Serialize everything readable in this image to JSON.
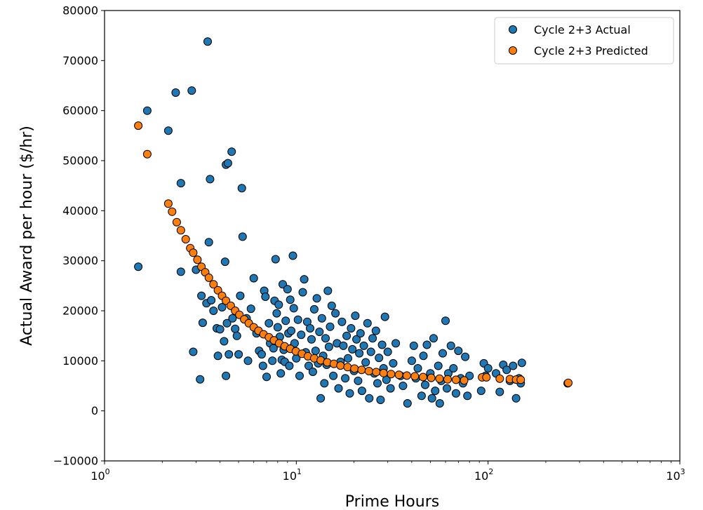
{
  "chart_data": {
    "type": "scatter",
    "xlabel": "Prime Hours",
    "ylabel": "Actual Award per hour ($/hr)",
    "xscale": "log",
    "xlim": [
      1,
      1000
    ],
    "ylim": [
      -10000,
      80000
    ],
    "yticks": [
      -10000,
      0,
      10000,
      20000,
      30000,
      40000,
      50000,
      60000,
      70000,
      80000
    ],
    "ytick_labels": [
      "−10000",
      "0",
      "10000",
      "20000",
      "30000",
      "40000",
      "50000",
      "60000",
      "70000",
      "80000"
    ],
    "xticks": [
      {
        "value": 1,
        "base": "10",
        "exp": "0"
      },
      {
        "value": 10,
        "base": "10",
        "exp": "1"
      },
      {
        "value": 100,
        "base": "10",
        "exp": "2"
      },
      {
        "value": 1000,
        "base": "10",
        "exp": "3"
      }
    ],
    "grid": false,
    "legend_position": "top-right",
    "series": [
      {
        "name": "Cycle 2+3 Actual",
        "color": "#1f77b4",
        "points": [
          [
            1.5,
            28800
          ],
          [
            1.67,
            60000
          ],
          [
            2.15,
            56000
          ],
          [
            2.35,
            63600
          ],
          [
            2.5,
            45500
          ],
          [
            2.5,
            27800
          ],
          [
            2.85,
            64000
          ],
          [
            2.9,
            11800
          ],
          [
            3.0,
            28200
          ],
          [
            3.15,
            6300
          ],
          [
            3.2,
            23000
          ],
          [
            3.25,
            17600
          ],
          [
            3.4,
            21500
          ],
          [
            3.45,
            73800
          ],
          [
            3.5,
            33700
          ],
          [
            3.55,
            46300
          ],
          [
            3.6,
            22100
          ],
          [
            3.7,
            20000
          ],
          [
            3.85,
            16500
          ],
          [
            3.9,
            11000
          ],
          [
            4.0,
            16300
          ],
          [
            4.1,
            20700
          ],
          [
            4.2,
            13900
          ],
          [
            4.25,
            29800
          ],
          [
            4.3,
            7000
          ],
          [
            4.3,
            49200
          ],
          [
            4.35,
            17500
          ],
          [
            4.4,
            49500
          ],
          [
            4.45,
            11300
          ],
          [
            4.6,
            51800
          ],
          [
            4.65,
            18500
          ],
          [
            4.8,
            16400
          ],
          [
            4.9,
            15000
          ],
          [
            5.0,
            11300
          ],
          [
            5.1,
            23000
          ],
          [
            5.2,
            44500
          ],
          [
            5.25,
            34800
          ],
          [
            5.5,
            18500
          ],
          [
            5.6,
            10000
          ],
          [
            5.8,
            20400
          ],
          [
            6.0,
            26500
          ],
          [
            6.2,
            15500
          ],
          [
            6.4,
            12000
          ],
          [
            6.6,
            11300
          ],
          [
            6.7,
            9000
          ],
          [
            6.8,
            24000
          ],
          [
            6.9,
            22800
          ],
          [
            7.0,
            6800
          ],
          [
            7.2,
            17500
          ],
          [
            7.3,
            13500
          ],
          [
            7.5,
            10000
          ],
          [
            7.6,
            12500
          ],
          [
            7.7,
            22000
          ],
          [
            7.8,
            30300
          ],
          [
            7.9,
            19500
          ],
          [
            8.0,
            16700
          ],
          [
            8.1,
            21200
          ],
          [
            8.2,
            14800
          ],
          [
            8.3,
            7500
          ],
          [
            8.4,
            10200
          ],
          [
            8.5,
            25300
          ],
          [
            8.6,
            12200
          ],
          [
            8.7,
            9800
          ],
          [
            8.8,
            18000
          ],
          [
            9.0,
            24300
          ],
          [
            9.1,
            15500
          ],
          [
            9.2,
            9000
          ],
          [
            9.3,
            22200
          ],
          [
            9.4,
            16000
          ],
          [
            9.5,
            12600
          ],
          [
            9.6,
            31000
          ],
          [
            9.7,
            20500
          ],
          [
            9.8,
            13500
          ],
          [
            10.0,
            10500
          ],
          [
            10.2,
            18200
          ],
          [
            10.4,
            7000
          ],
          [
            10.6,
            15200
          ],
          [
            10.8,
            23700
          ],
          [
            11.0,
            26300
          ],
          [
            11.2,
            11700
          ],
          [
            11.4,
            17800
          ],
          [
            11.6,
            9000
          ],
          [
            11.8,
            16500
          ],
          [
            12.0,
            14300
          ],
          [
            12.2,
            7800
          ],
          [
            12.4,
            20300
          ],
          [
            12.6,
            12000
          ],
          [
            12.8,
            22500
          ],
          [
            13.0,
            9500
          ],
          [
            13.2,
            15800
          ],
          [
            13.4,
            2500
          ],
          [
            13.6,
            18500
          ],
          [
            13.8,
            11000
          ],
          [
            14.0,
            5500
          ],
          [
            14.2,
            14500
          ],
          [
            14.4,
            9200
          ],
          [
            14.6,
            24000
          ],
          [
            14.8,
            12800
          ],
          [
            15.0,
            16800
          ],
          [
            15.3,
            21000
          ],
          [
            15.6,
            7000
          ],
          [
            16.0,
            19500
          ],
          [
            16.3,
            13500
          ],
          [
            16.6,
            4500
          ],
          [
            17.0,
            9800
          ],
          [
            17.3,
            17800
          ],
          [
            17.6,
            13000
          ],
          [
            18.0,
            6500
          ],
          [
            18.3,
            15000
          ],
          [
            18.6,
            10500
          ],
          [
            19.0,
            3500
          ],
          [
            19.3,
            16500
          ],
          [
            19.6,
            12300
          ],
          [
            20.0,
            8000
          ],
          [
            20.3,
            19000
          ],
          [
            20.6,
            14300
          ],
          [
            21.0,
            6000
          ],
          [
            21.3,
            11500
          ],
          [
            21.6,
            15500
          ],
          [
            22.0,
            4000
          ],
          [
            22.5,
            13000
          ],
          [
            23.0,
            9700
          ],
          [
            23.5,
            17500
          ],
          [
            24.0,
            2500
          ],
          [
            24.5,
            11800
          ],
          [
            25.0,
            14500
          ],
          [
            25.5,
            7500
          ],
          [
            26.0,
            16000
          ],
          [
            26.5,
            5500
          ],
          [
            27.0,
            10600
          ],
          [
            27.5,
            2200
          ],
          [
            28.0,
            13200
          ],
          [
            28.5,
            8500
          ],
          [
            29.0,
            18800
          ],
          [
            29.5,
            6200
          ],
          [
            30.0,
            11800
          ],
          [
            31.0,
            4500
          ],
          [
            32.0,
            9500
          ],
          [
            33.0,
            13500
          ],
          [
            35.0,
            7000
          ],
          [
            36.0,
            5000
          ],
          [
            38.0,
            1500
          ],
          [
            40.0,
            10000
          ],
          [
            41.0,
            13000
          ],
          [
            42.0,
            6500
          ],
          [
            43.0,
            8500
          ],
          [
            45.0,
            3000
          ],
          [
            46.0,
            11000
          ],
          [
            47.0,
            5200
          ],
          [
            48.0,
            13200
          ],
          [
            50.0,
            7500
          ],
          [
            51.0,
            2500
          ],
          [
            52.0,
            14500
          ],
          [
            53.0,
            4000
          ],
          [
            55.0,
            9000
          ],
          [
            56.0,
            1500
          ],
          [
            57.0,
            6000
          ],
          [
            58.0,
            11500
          ],
          [
            60.0,
            18000
          ],
          [
            61.0,
            4500
          ],
          [
            62.0,
            7500
          ],
          [
            64.0,
            13000
          ],
          [
            66.0,
            8500
          ],
          [
            68.0,
            3500
          ],
          [
            70.0,
            12000
          ],
          [
            72.0,
            6500
          ],
          [
            74.0,
            5500
          ],
          [
            76.0,
            10800
          ],
          [
            78.0,
            3000
          ],
          [
            80.0,
            7000
          ],
          [
            92.0,
            4000
          ],
          [
            95.0,
            9500
          ],
          [
            97.0,
            7000
          ],
          [
            100.0,
            8500
          ],
          [
            110.0,
            7500
          ],
          [
            115.0,
            3800
          ],
          [
            120.0,
            9200
          ],
          [
            125.0,
            8200
          ],
          [
            130.0,
            6000
          ],
          [
            135.0,
            9000
          ],
          [
            140.0,
            2500
          ],
          [
            145.0,
            6500
          ],
          [
            148.0,
            5500
          ],
          [
            150.0,
            9600
          ],
          [
            260.0,
            5500
          ]
        ]
      },
      {
        "name": "Cycle 2+3 Predicted",
        "color": "#ff7f0e",
        "points": [
          [
            1.5,
            57000
          ],
          [
            1.67,
            51300
          ],
          [
            2.15,
            41400
          ],
          [
            2.25,
            39800
          ],
          [
            2.38,
            37700
          ],
          [
            2.5,
            36100
          ],
          [
            2.65,
            34300
          ],
          [
            2.8,
            32500
          ],
          [
            2.9,
            31600
          ],
          [
            3.05,
            30200
          ],
          [
            3.2,
            28800
          ],
          [
            3.35,
            27700
          ],
          [
            3.5,
            26600
          ],
          [
            3.7,
            25300
          ],
          [
            3.9,
            24100
          ],
          [
            4.1,
            23000
          ],
          [
            4.3,
            22000
          ],
          [
            4.55,
            21000
          ],
          [
            4.8,
            20000
          ],
          [
            5.05,
            19200
          ],
          [
            5.35,
            18300
          ],
          [
            5.65,
            17500
          ],
          [
            6.0,
            16700
          ],
          [
            6.35,
            16000
          ],
          [
            6.75,
            15300
          ],
          [
            7.2,
            14700
          ],
          [
            7.65,
            14100
          ],
          [
            8.15,
            13500
          ],
          [
            8.7,
            12900
          ],
          [
            9.3,
            12400
          ],
          [
            9.95,
            11900
          ],
          [
            10.7,
            11400
          ],
          [
            11.5,
            10900
          ],
          [
            12.4,
            10500
          ],
          [
            13.4,
            10100
          ],
          [
            14.5,
            9700
          ],
          [
            15.7,
            9400
          ],
          [
            17.0,
            9050
          ],
          [
            18.5,
            8750
          ],
          [
            20.1,
            8450
          ],
          [
            21.9,
            8200
          ],
          [
            23.9,
            7950
          ],
          [
            26.1,
            7750
          ],
          [
            28.5,
            7550
          ],
          [
            31.2,
            7350
          ],
          [
            34.3,
            7200
          ],
          [
            37.7,
            7050
          ],
          [
            41.5,
            6900
          ],
          [
            45.8,
            6750
          ],
          [
            50.5,
            6600
          ],
          [
            55.8,
            6450
          ],
          [
            61.5,
            6300
          ],
          [
            68.0,
            6200
          ],
          [
            75.0,
            6100
          ],
          [
            93.0,
            6700
          ],
          [
            98.0,
            6700
          ],
          [
            115.0,
            6450
          ],
          [
            130.0,
            6350
          ],
          [
            140.0,
            6250
          ],
          [
            148.0,
            6200
          ],
          [
            262.0,
            5600
          ]
        ]
      }
    ]
  }
}
